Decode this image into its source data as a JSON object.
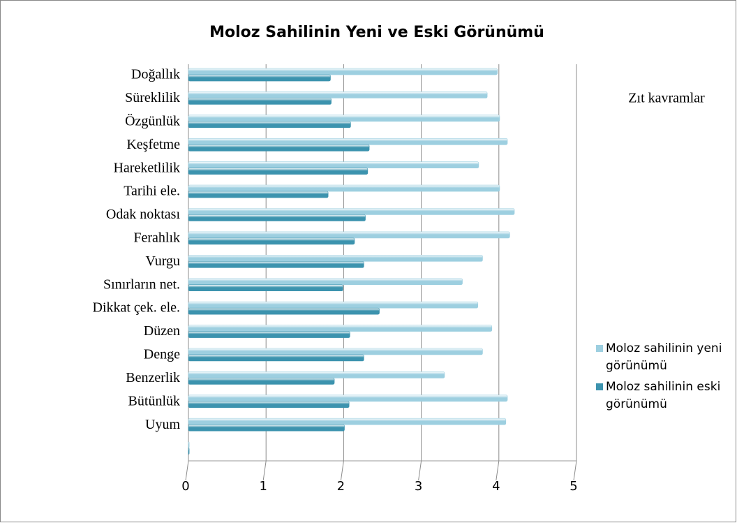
{
  "chart_data": {
    "type": "hbar",
    "title": "Moloz Sahilinin Yeni ve Eski Görünümü",
    "legend_title": "Zıt kavramlar",
    "categories": [
      "Doğallık",
      "Süreklilik",
      "Özgünlük",
      "Keşfetme",
      "Hareketlilik",
      "Tarihi ele.",
      "Odak noktası",
      "Ferahlık",
      "Vurgu",
      "Sınırların net.",
      "Dikkat çek. ele.",
      "Düzen",
      "Denge",
      "Benzerlik",
      "Bütünlük",
      "Uyum",
      null
    ],
    "series": [
      {
        "name": "Moloz sahilinin yeni görünümü",
        "color": "#9dcfe0",
        "values": [
          3.98,
          3.85,
          4.01,
          4.11,
          3.74,
          4.01,
          4.2,
          4.14,
          3.79,
          3.53,
          3.73,
          3.91,
          3.79,
          3.3,
          4.11,
          4.09,
          0.01
        ]
      },
      {
        "name": "Moloz sahilinin eski görünümü",
        "color": "#3c93ae",
        "values": [
          1.83,
          1.84,
          2.09,
          2.33,
          2.31,
          1.8,
          2.28,
          2.14,
          2.26,
          1.99,
          2.46,
          2.08,
          2.26,
          1.88,
          2.07,
          2.01,
          0.01
        ]
      }
    ],
    "xlim": [
      0,
      5
    ],
    "xticks": [
      0,
      1,
      2,
      3,
      4,
      5
    ],
    "grid": true,
    "legend_position": "right"
  }
}
